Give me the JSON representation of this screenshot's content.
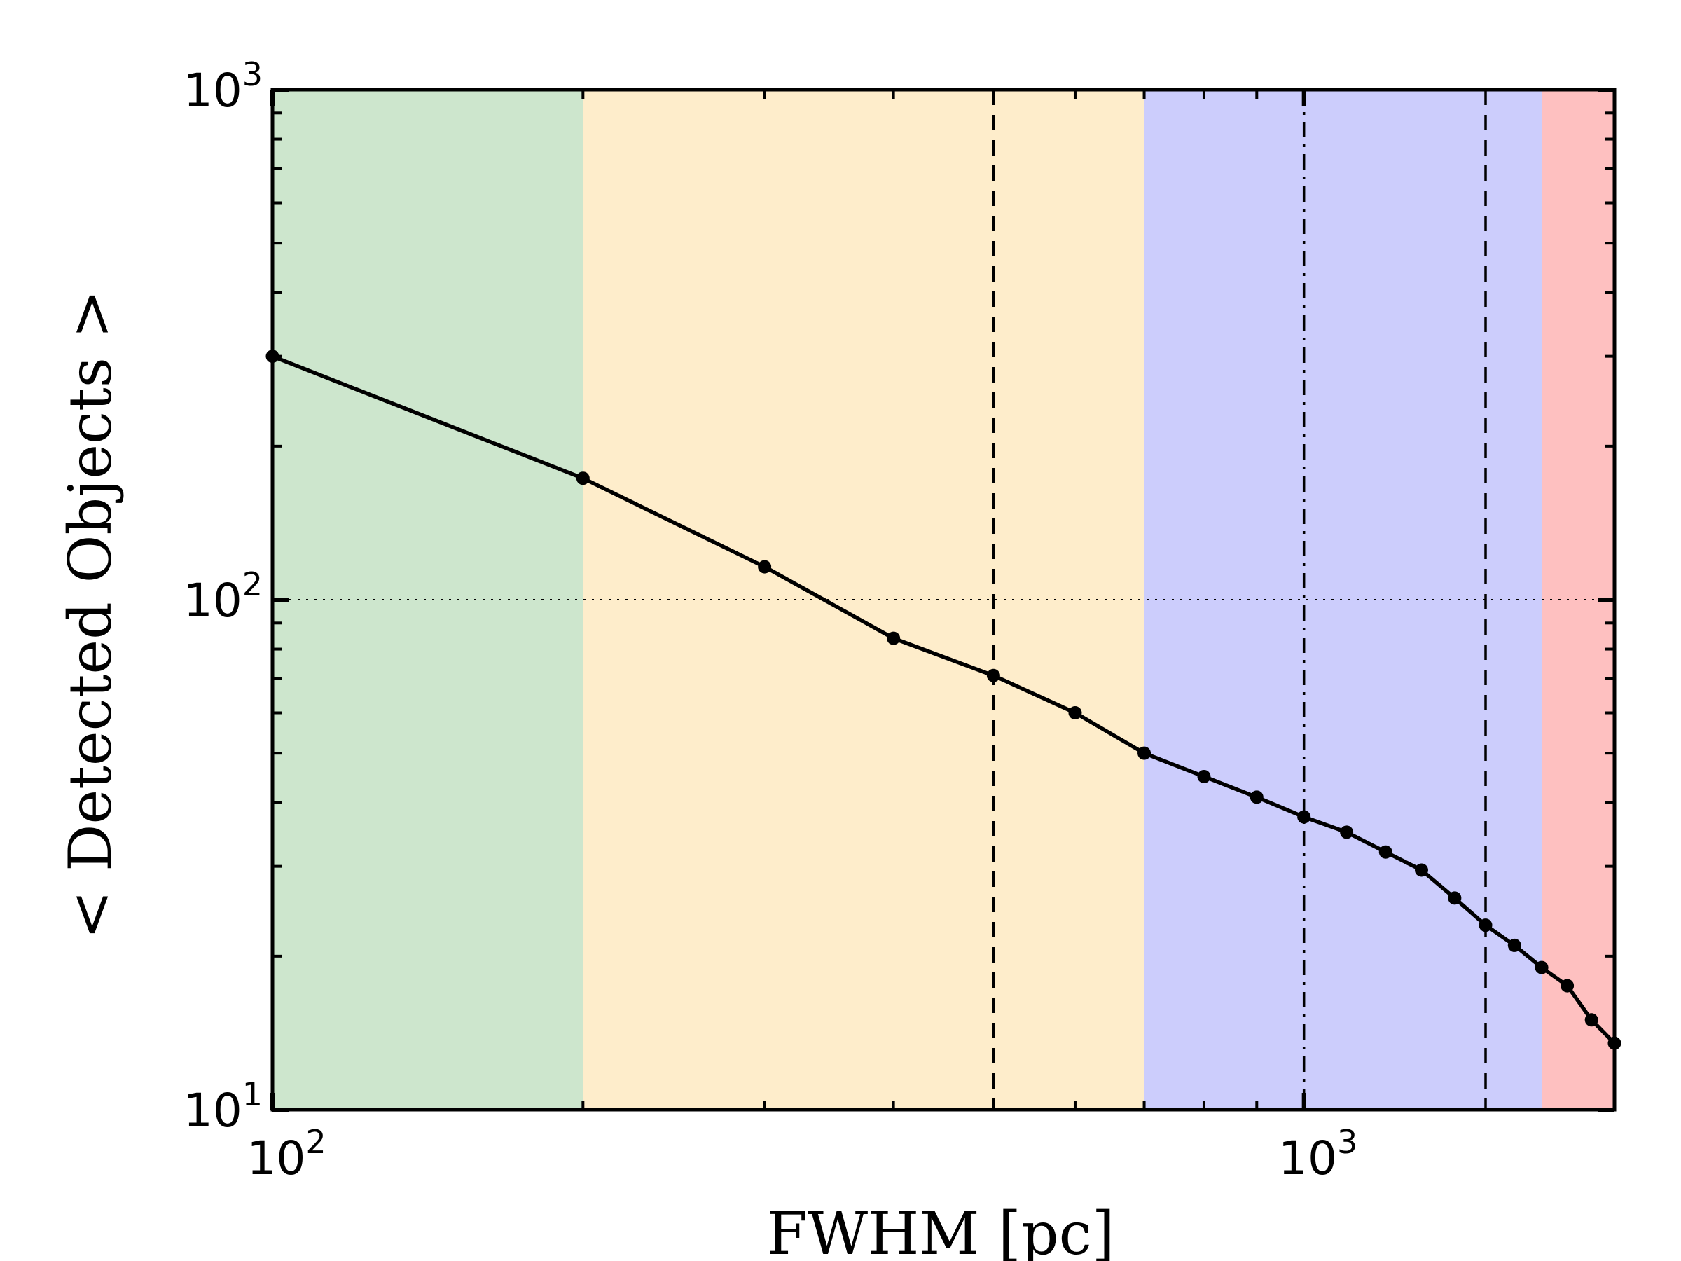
{
  "chart_data": {
    "type": "line",
    "xlabel": "FWHM [pc]",
    "ylabel": "< Detected Objects >",
    "x_scale": "log",
    "y_scale": "log",
    "xlim": [
      100,
      2000
    ],
    "ylim": [
      10,
      1000
    ],
    "x_tick_labels": [
      {
        "value": 100,
        "base": "10",
        "exp": "2"
      },
      {
        "value": 1000,
        "base": "10",
        "exp": "3"
      }
    ],
    "y_tick_labels": [
      {
        "value": 10,
        "base": "10",
        "exp": "1"
      },
      {
        "value": 100,
        "base": "10",
        "exp": "2"
      },
      {
        "value": 1000,
        "base": "10",
        "exp": "3"
      }
    ],
    "grid": false,
    "series": [
      {
        "x": [
          100,
          200,
          300,
          400,
          500,
          600,
          700,
          800,
          900,
          1000,
          1100,
          1200,
          1300,
          1400,
          1500,
          1600,
          1700,
          1800,
          1900,
          2000
        ],
        "y": [
          300,
          173,
          116,
          84,
          71,
          60,
          50,
          45,
          41,
          37.5,
          35,
          32,
          29.5,
          26,
          23,
          21,
          19,
          17.5,
          15,
          13.5
        ],
        "color": "#000000",
        "marker": "circle"
      }
    ],
    "shaded_regions": [
      {
        "x": [
          100,
          200
        ],
        "color": "#cde6cd"
      },
      {
        "x": [
          200,
          700
        ],
        "color": "#feedcb"
      },
      {
        "x": [
          700,
          1700
        ],
        "color": "#cccdfc"
      },
      {
        "x": [
          1700,
          2000
        ],
        "color": "#fec0c0"
      }
    ],
    "vertical_lines": [
      {
        "x": 500,
        "style": "dashed"
      },
      {
        "x": 1000,
        "style": "dashdot"
      },
      {
        "x": 1500,
        "style": "dashed"
      }
    ],
    "horizontal_lines": [
      {
        "y": 100,
        "style": "dotted"
      }
    ]
  }
}
